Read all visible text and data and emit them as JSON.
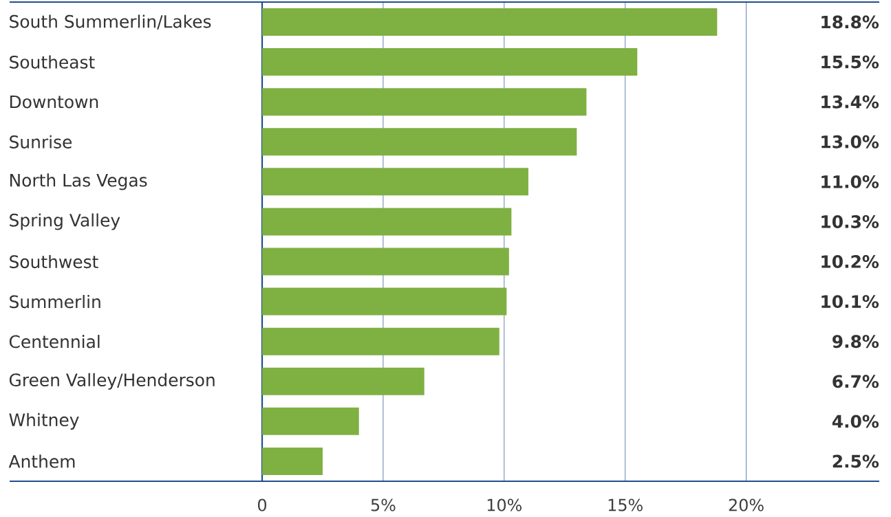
{
  "chart_data": {
    "type": "bar",
    "orientation": "horizontal",
    "categories": [
      "South Summerlin/Lakes",
      "Southeast",
      "Downtown",
      "Sunrise",
      "North Las Vegas",
      "Spring Valley",
      "Southwest",
      "Summerlin",
      "Centennial",
      "Green Valley/Henderson",
      "Whitney",
      "Anthem"
    ],
    "values": [
      18.8,
      15.5,
      13.4,
      13.0,
      11.0,
      10.3,
      10.2,
      10.1,
      9.8,
      6.7,
      4.0,
      2.5
    ],
    "value_labels": [
      "18.8%",
      "15.5%",
      "13.4%",
      "13.0%",
      "11.0%",
      "10.3%",
      "10.2%",
      "10.1%",
      "9.8%",
      "6.7%",
      "4.0%",
      "2.5%"
    ],
    "color": "#7fb042",
    "xlim": [
      0,
      25.5
    ],
    "xticks": [
      0,
      {
        "value": 5,
        "label": "5%"
      },
      {
        "value": 10,
        "label": "10%"
      },
      {
        "value": 15,
        "label": "15%"
      },
      {
        "value": 20,
        "label": "20%"
      }
    ],
    "grid": "x"
  }
}
